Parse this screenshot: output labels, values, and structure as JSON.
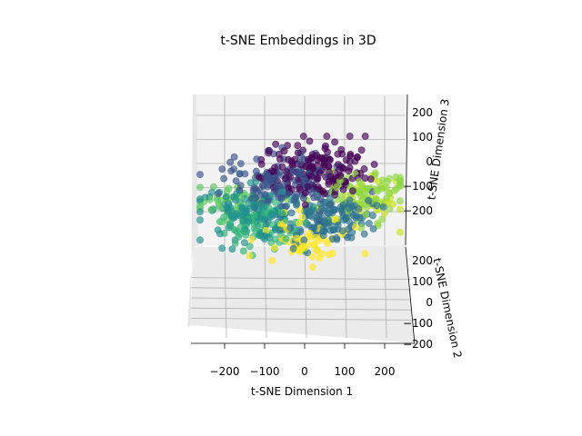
{
  "chart_data": {
    "type": "scatter",
    "projection": "3d",
    "title": "t-SNE Embeddings in 3D",
    "xlabel": "t-SNE Dimension 1",
    "ylabel": "t-SNE Dimension 2",
    "zlabel": "t-SNE Dimension 3",
    "xlim": [
      -270,
      270
    ],
    "ylim": [
      -200,
      200
    ],
    "zlim": [
      -280,
      280
    ],
    "x_ticks": [
      -200,
      -100,
      0,
      100,
      200
    ],
    "y_ticks": [
      -200,
      -100,
      0,
      100,
      200
    ],
    "z_ticks": [
      -200,
      -100,
      0,
      100,
      200
    ],
    "x_tick_labels": [
      "−200",
      "−100",
      "0",
      "100",
      "200"
    ],
    "y_tick_labels": [
      "−200",
      "−100",
      "0",
      "100",
      "200"
    ],
    "z_tick_labels": [
      "−200",
      "−100",
      "0",
      "100",
      "200"
    ],
    "grid": true,
    "colormap": "viridis",
    "clusters": [
      {
        "color": "#440154",
        "center": [
          30,
          40,
          150
        ],
        "spread": 70,
        "count": 150
      },
      {
        "color": "#3b528b",
        "center": [
          -60,
          30,
          90
        ],
        "spread": 70,
        "count": 140
      },
      {
        "color": "#21918c",
        "center": [
          -130,
          -40,
          -40
        ],
        "spread": 65,
        "count": 140
      },
      {
        "color": "#2c728e",
        "center": [
          60,
          -80,
          -60
        ],
        "spread": 60,
        "count": 130
      },
      {
        "color": "#35b779",
        "center": [
          -110,
          -100,
          -90
        ],
        "spread": 55,
        "count": 70
      },
      {
        "color": "#5ec962",
        "center": [
          -180,
          20,
          -10
        ],
        "spread": 45,
        "count": 40
      },
      {
        "color": "#90d743",
        "center": [
          160,
          0,
          40
        ],
        "spread": 55,
        "count": 80
      },
      {
        "color": "#c8e020",
        "center": [
          150,
          60,
          -20
        ],
        "spread": 50,
        "count": 40
      },
      {
        "color": "#fde725",
        "center": [
          10,
          -150,
          -140
        ],
        "spread": 55,
        "count": 60
      }
    ]
  }
}
